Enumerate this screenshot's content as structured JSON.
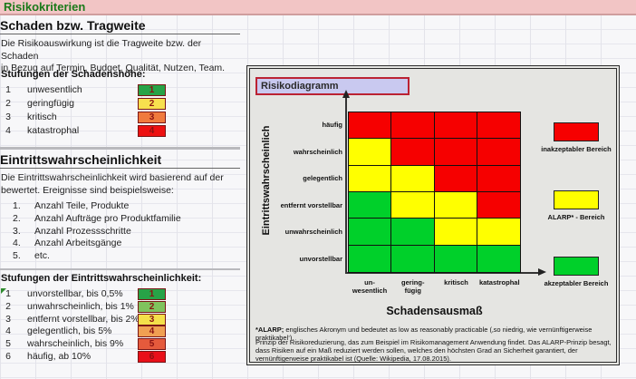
{
  "banner": {
    "title": "Risikokriterien"
  },
  "left": {
    "damage": {
      "title": "Schaden bzw. Tragweite",
      "description": "Die Risikoauswirkung ist die Tragweite bzw. der Schaden\nin Bezug auf Termin, Budget, Qualität, Nutzen, Team.",
      "scale_title": "Stufungen der Schadenshöhe:",
      "scale": [
        {
          "num": "1",
          "label": "unwesentlich",
          "color": "#27a347"
        },
        {
          "num": "2",
          "label": "geringfügig",
          "color": "#f7e04e"
        },
        {
          "num": "3",
          "label": "kritisch",
          "color": "#f07a3d"
        },
        {
          "num": "4",
          "label": "katastrophal",
          "color": "#ed1111"
        }
      ]
    },
    "probability": {
      "title": "Eintrittswahrscheinlichkeit",
      "description": "Die Eintrittswahrscheinlichkeit  wird basierend auf der\nbewertet. Ereignisse sind beispielsweise:",
      "examples": [
        {
          "num": "1.",
          "label": "Anzahl Teile, Produkte"
        },
        {
          "num": "2.",
          "label": "Anzahl Aufträge pro Produktfamilie"
        },
        {
          "num": "3.",
          "label": "Anzahl Prozessschritte"
        },
        {
          "num": "4.",
          "label": "Anzahl Arbeitsgänge"
        },
        {
          "num": "5.",
          "label": "etc."
        }
      ],
      "scale_title": "Stufungen der Eintrittswahrscheinlichkeit:",
      "scale": [
        {
          "num": "1",
          "label": "unvorstellbar, bis 0,5%",
          "color": "#27a347"
        },
        {
          "num": "2",
          "label": "unwahrscheinlich, bis 1%",
          "color": "#7fc35d"
        },
        {
          "num": "3",
          "label": "entfernt vorstellbar, bis 2%",
          "color": "#f4e04a"
        },
        {
          "num": "4",
          "label": "gelegentlich, bis 5%",
          "color": "#f0a052"
        },
        {
          "num": "5",
          "label": "wahrscheinlich, bis 9%",
          "color": "#e55a3c"
        },
        {
          "num": "6",
          "label": "häufig, ab 10%",
          "color": "#e91019"
        }
      ]
    }
  },
  "diagram": {
    "title": "Risikodiagramm",
    "y_axis_title": "Eintrittswahrscheinlich",
    "x_axis_title": "Schadensausmaß",
    "y_labels": [
      "häufig",
      "wahrscheinlich",
      "gelegentlich",
      "entfernt vorstellbar",
      "unwahrscheinlich",
      "unvorstellbar"
    ],
    "x_labels": [
      "un-\nwesentlich",
      "gering-\nfügig",
      "kritisch",
      "katastrophal"
    ],
    "colors": {
      "R": "#f60000",
      "Y": "#ffff00",
      "G": "#00d02a"
    },
    "matrix": [
      [
        "R",
        "R",
        "R",
        "R"
      ],
      [
        "Y",
        "R",
        "R",
        "R"
      ],
      [
        "Y",
        "Y",
        "R",
        "R"
      ],
      [
        "G",
        "Y",
        "Y",
        "R"
      ],
      [
        "G",
        "G",
        "Y",
        "Y"
      ],
      [
        "G",
        "G",
        "G",
        "G"
      ]
    ],
    "legend": [
      {
        "label": "inakzeptabler Bereich",
        "color_key": "R"
      },
      {
        "label": "ALARP* - Bereich",
        "color_key": "Y"
      },
      {
        "label": "akzeptabler Bereich",
        "color_key": "G"
      }
    ],
    "footnote_bold": "*ALARP;",
    "footnote_rest": " englisches Akronym und bedeutet as low as reasonably practicable (‚so niedrig, wie vernünftigerweise praktikabel‘).",
    "paragraph": "Prinzip der Risikoreduzierung, das zum Beispiel im Risikomanagement Anwendung findet. Das ALARP-Prinzip besagt, dass Risiken auf ein Maß reduziert werden sollen, welches den höchsten Grad an Sicherheit garantiert, der vernünftigerweise praktikabel ist (Quelle: Wikipedia, 17.08.2015)."
  }
}
